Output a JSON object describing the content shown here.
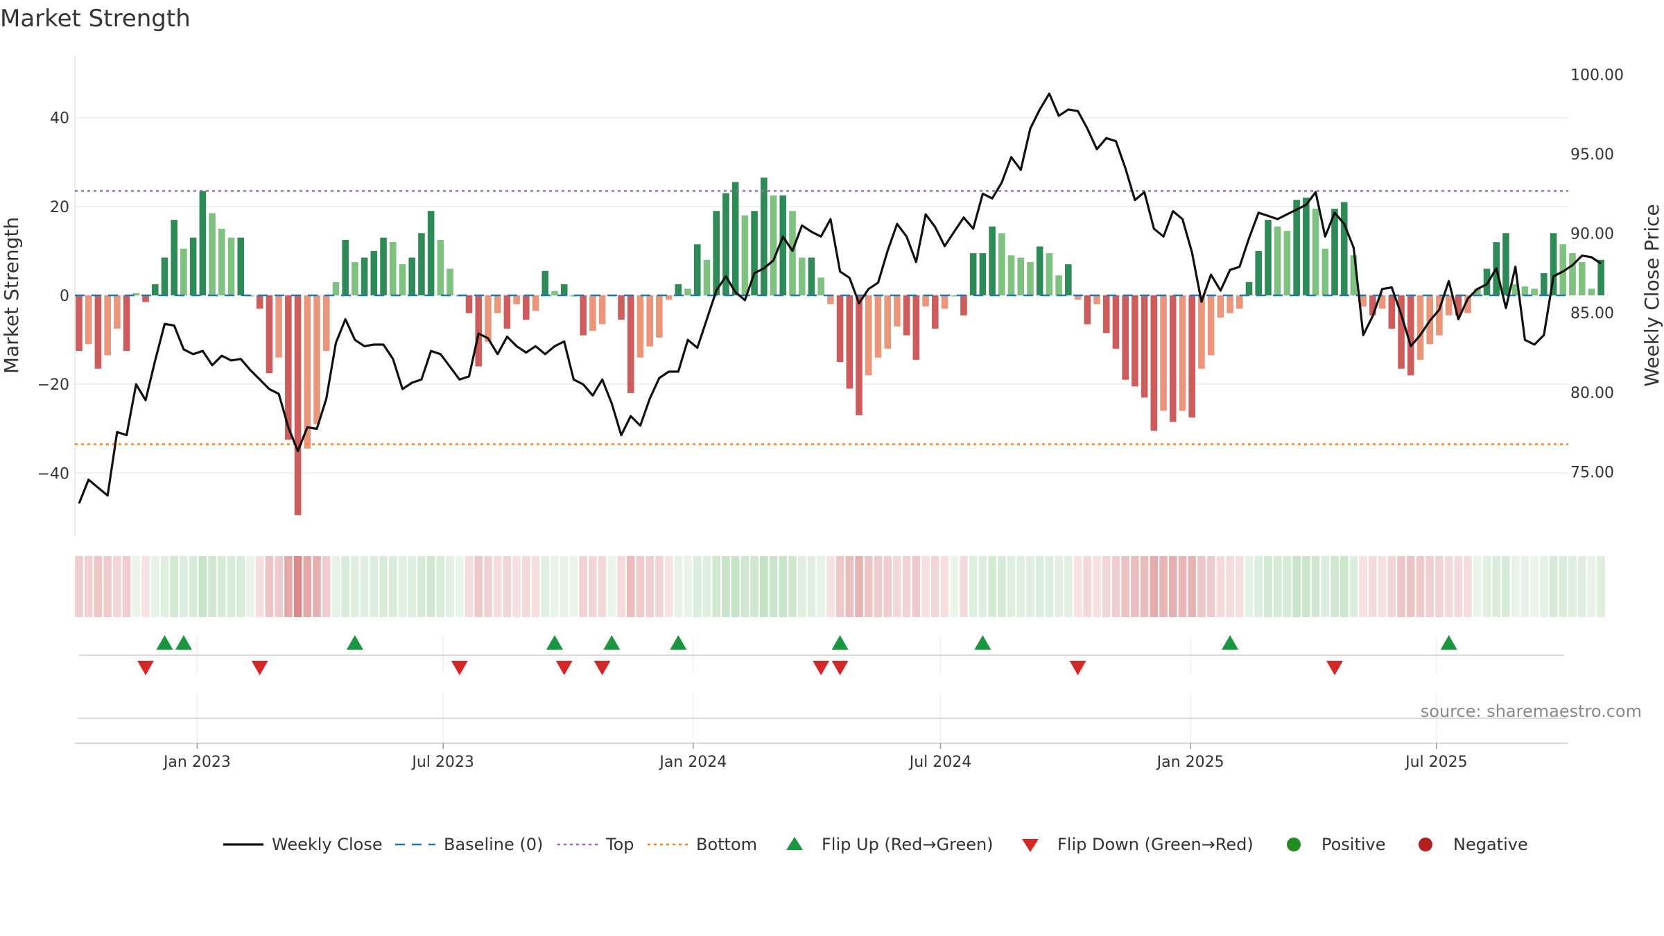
{
  "title": "Market Strength",
  "source": "source: sharemaestro.com",
  "colors": {
    "strong_green": "#2e8b57",
    "light_green": "#7fc17f",
    "strong_red": "#cd5c5c",
    "light_red": "#e9967a",
    "price_line": "#111111",
    "baseline": "#1f77b4",
    "top_line": "#9467bd",
    "bottom_line": "#ff7f0e",
    "flip_up": "#1a9641",
    "flip_down": "#d62728",
    "positive": "#228b22",
    "negative": "#b22222"
  },
  "chart_data": {
    "type": "bar",
    "ylabel": "Market Strength",
    "ylabel_right": "Weekly Close Price",
    "ylim": [
      -54,
      54
    ],
    "ylim_right": [
      71.0,
      101.2
    ],
    "yticks": [
      -40,
      -20,
      0,
      20,
      40
    ],
    "yticks_right": [
      "75.00",
      "80.00",
      "85.00",
      "90.00",
      "95.00",
      "100.00"
    ],
    "xlim": [
      "2022-10-03",
      "2025-10-06"
    ],
    "xticks": [
      {
        "date": "2023-01-01",
        "label": "Jan 2023"
      },
      {
        "date": "2023-07-01",
        "label": "Jul 2023"
      },
      {
        "date": "2024-01-01",
        "label": "Jan 2024"
      },
      {
        "date": "2024-07-01",
        "label": "Jul 2024"
      },
      {
        "date": "2025-01-01",
        "label": "Jan 2025"
      },
      {
        "date": "2025-07-01",
        "label": "Jul 2025"
      }
    ],
    "start_week": "2022-10-03",
    "top_threshold": 23.5,
    "bottom_threshold": -33.5,
    "strength": [
      -12.5,
      -11,
      -16.5,
      -13.5,
      -7.5,
      -12.5,
      0.5,
      -1.5,
      2.5,
      8.5,
      17,
      10.5,
      13,
      23.5,
      18.5,
      15,
      13,
      13,
      0,
      -3,
      -17.5,
      -14,
      -32.5,
      -49.5,
      -34.5,
      -29,
      -12.5,
      3,
      12.5,
      7.5,
      8.5,
      10,
      13,
      12,
      7,
      8.5,
      14,
      19,
      12.5,
      6,
      0,
      -4,
      -16,
      -10.5,
      -4,
      -7.5,
      -2,
      -5.5,
      -3.5,
      5.5,
      1,
      2.5,
      0,
      -9,
      -8,
      -6.5,
      0,
      -5.5,
      -22,
      -14,
      -11.5,
      -9.5,
      -1,
      2.5,
      1.5,
      11.5,
      8,
      19,
      23,
      25.5,
      18,
      19,
      26.5,
      22.5,
      22.5,
      19,
      8.5,
      8.5,
      4,
      -2,
      -15,
      -21,
      -27,
      -18,
      -14,
      -12,
      -7,
      -9,
      -14.5,
      -2.5,
      -7.5,
      -3,
      0,
      -4.5,
      9.5,
      9.5,
      15.5,
      14,
      9,
      8.5,
      7.5,
      11,
      9.5,
      4.5,
      7,
      -1,
      -6.5,
      -2,
      -8.5,
      -12,
      -19,
      -20.5,
      -23,
      -30.5,
      -26,
      -28.5,
      -26,
      -27.5,
      -16.5,
      -13.5,
      -5,
      -4,
      -3,
      3,
      10,
      17,
      15.5,
      14.5,
      21.5,
      22,
      19.5,
      10.5,
      19.5,
      21,
      9,
      -2.5,
      -4.5,
      -3,
      -7.5,
      -16.5,
      -18,
      -14.5,
      -11,
      -9,
      -4.5,
      -4.5,
      -4,
      1.5,
      6,
      12,
      14,
      2.5,
      2,
      1.5,
      5,
      14,
      11.5,
      9.5,
      7.5,
      1.5,
      8
    ],
    "price": [
      73.0,
      74.5,
      74.0,
      73.5,
      77.5,
      77.3,
      80.5,
      79.5,
      82.0,
      84.3,
      84.2,
      82.7,
      82.4,
      82.6,
      81.7,
      82.3,
      82.0,
      82.1,
      81.4,
      80.8,
      80.2,
      79.9,
      77.8,
      76.3,
      77.8,
      77.7,
      79.6,
      83.1,
      84.6,
      83.3,
      82.9,
      83.0,
      83.0,
      82.1,
      80.2,
      80.6,
      80.8,
      82.6,
      82.4,
      81.6,
      80.8,
      81.0,
      83.7,
      83.4,
      82.4,
      83.5,
      82.9,
      82.5,
      82.9,
      82.4,
      82.9,
      83.2,
      80.8,
      80.5,
      79.8,
      80.8,
      79.3,
      77.3,
      78.5,
      77.9,
      79.6,
      80.9,
      81.3,
      81.3,
      83.3,
      82.8,
      84.6,
      86.4,
      87.3,
      86.3,
      85.8,
      87.5,
      87.8,
      88.3,
      89.8,
      88.9,
      90.5,
      90.1,
      89.8,
      90.9,
      87.6,
      87.2,
      85.6,
      86.5,
      86.9,
      88.9,
      90.6,
      89.8,
      88.2,
      91.2,
      90.4,
      89.2,
      90.1,
      91.0,
      90.3,
      92.5,
      92.2,
      93.2,
      94.8,
      94.0,
      96.6,
      97.8,
      98.8,
      97.4,
      97.8,
      97.7,
      96.6,
      95.3,
      96.0,
      95.8,
      94.1,
      92.1,
      92.6,
      90.3,
      89.8,
      91.4,
      90.9,
      88.8,
      85.7,
      87.4,
      86.4,
      87.7,
      87.9,
      89.7,
      91.3,
      91.1,
      90.9,
      91.2,
      91.5,
      91.8,
      92.6,
      89.8,
      91.3,
      90.6,
      89.1,
      83.6,
      84.8,
      86.5,
      86.6,
      84.9,
      82.9,
      83.6,
      84.5,
      85.2,
      87.0,
      84.6,
      85.9,
      86.5,
      86.8,
      87.8,
      85.3,
      87.9,
      83.3,
      83.0,
      83.6,
      87.3,
      87.6,
      88.0,
      88.6,
      88.5,
      88.1
    ],
    "flip_up_weeks": [
      9,
      11,
      29,
      50,
      56,
      63,
      80,
      95,
      121,
      144
    ],
    "flip_down_weeks": [
      7,
      19,
      40,
      51,
      55,
      78,
      80,
      105,
      132
    ],
    "legend": [
      {
        "label": "Weekly Close",
        "kind": "line"
      },
      {
        "label": "Baseline (0)",
        "kind": "dash"
      },
      {
        "label": "Top",
        "kind": "dot-purple"
      },
      {
        "label": "Bottom",
        "kind": "dot-orange"
      },
      {
        "label": "Flip Up (Red→Green)",
        "kind": "tri-up"
      },
      {
        "label": "Flip Down (Green→Red)",
        "kind": "tri-down"
      },
      {
        "label": "Positive",
        "kind": "dot-green"
      },
      {
        "label": "Negative",
        "kind": "dot-red"
      }
    ]
  }
}
